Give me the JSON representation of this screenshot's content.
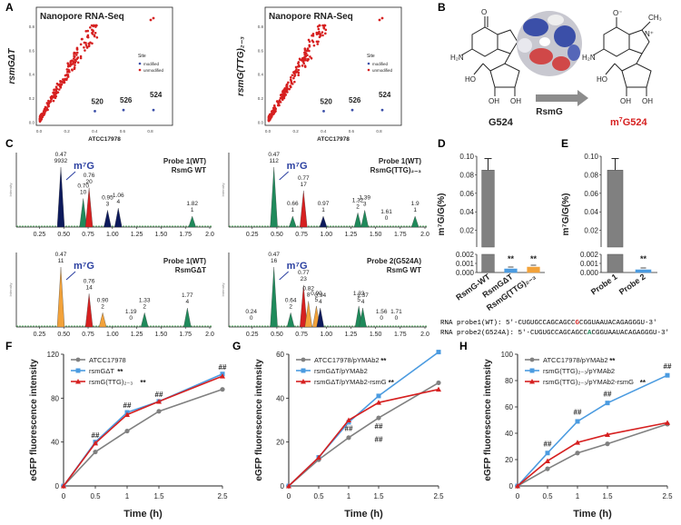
{
  "panel_labels": {
    "A": "A",
    "B": "B",
    "C": "C",
    "D": "D",
    "E": "E",
    "F": "F",
    "G": "G",
    "H": "H"
  },
  "colors": {
    "red": "#d62020",
    "blue": "#3b4fa8",
    "gray": "#808080",
    "lightblue": "#4b9be0",
    "orange": "#f2a23a",
    "green": "#1f8a5b",
    "navy": "#0d1a5c"
  },
  "panel_a": {
    "xlabel": "ATCC17978",
    "legend_title": "Site",
    "legend_modified": "modified",
    "legend_unmodified": "unmodified",
    "x_ticks": [
      "0.0",
      "0.2",
      "0.4",
      "0.6",
      "0.8"
    ],
    "y_ticks": [
      "0.0",
      "0.2",
      "0.4",
      "0.6",
      "0.8"
    ],
    "plots": [
      {
        "title": "Nanopore RNA-Seq",
        "ylabel": "rsmGΔT",
        "labels": [
          "520",
          "526",
          "524"
        ]
      },
      {
        "title": "Nanopore RNA-Seq",
        "ylabel": "rsmG(TTG)₂₋₃",
        "labels": [
          "520",
          "526",
          "524"
        ]
      }
    ]
  },
  "panel_b": {
    "left_label": "G524",
    "right_label": "m⁷G524",
    "enzyme": "RsmG",
    "right_prefix": "m",
    "right_sup": "7",
    "right_rest": "G524"
  },
  "panel_c": {
    "x_ticks": [
      "0.25",
      "0.50",
      "0.75",
      "1.00",
      "1.25",
      "1.50",
      "1.75",
      "2.0"
    ],
    "m7g_label": "m⁷G",
    "traces": [
      {
        "title1": "Probe 1(WT)",
        "title2": "RsmG WT",
        "peaks": [
          {
            "t": "0.47",
            "v": "9932"
          },
          {
            "t": "0.70",
            "v": "10"
          },
          {
            "t": "0.76",
            "v": "20"
          },
          {
            "t": "0.95",
            "v": "3"
          },
          {
            "t": "1.06",
            "v": "4"
          },
          {
            "t": "1.82",
            "v": "1"
          }
        ]
      },
      {
        "title1": "Probe 1(WT)",
        "title2": "RsmG(TTG)₂₋₃",
        "peaks": [
          {
            "t": "0.47",
            "v": "112"
          },
          {
            "t": "0.66",
            "v": "1"
          },
          {
            "t": "0.77",
            "v": "17"
          },
          {
            "t": "0.97",
            "v": "1"
          },
          {
            "t": "1.32",
            "v": "2"
          },
          {
            "t": "1.39",
            "v": "3"
          },
          {
            "t": "1.61",
            "v": "0"
          },
          {
            "t": "1.9",
            "v": "1"
          }
        ]
      },
      {
        "title1": "Probe 1(WT)",
        "title2": "RsmGΔT",
        "peaks": [
          {
            "t": "0.47",
            "v": "11"
          },
          {
            "t": "0.76",
            "v": "14"
          },
          {
            "t": "0.90",
            "v": "2"
          },
          {
            "t": "1.19",
            "v": "0"
          },
          {
            "t": "1.33",
            "v": "2"
          },
          {
            "t": "1.77",
            "v": "4"
          }
        ]
      },
      {
        "title1": "Probe 2(G524A)",
        "title2": "RsmG WT",
        "peaks": [
          {
            "t": "0.24",
            "v": "0"
          },
          {
            "t": "0.47",
            "v": "16"
          },
          {
            "t": "0.64",
            "v": "2"
          },
          {
            "t": "0.77",
            "v": "23"
          },
          {
            "t": "0.82",
            "v": "8"
          },
          {
            "t": "0.90",
            "v": "5"
          },
          {
            "t": "0.94",
            "v": "4"
          },
          {
            "t": "1.33",
            "v": "5"
          },
          {
            "t": "1.37",
            "v": "4"
          },
          {
            "t": "1.56",
            "v": "0"
          },
          {
            "t": "1.71",
            "v": "0"
          }
        ]
      }
    ]
  },
  "panel_d": {
    "ylabel": "m⁷G/G(%)",
    "categories": [
      "RsmG-WT",
      "RsmGΔT",
      "RsmG(TTG)₂₋₃"
    ],
    "values": [
      0.085,
      0.0004,
      0.0006
    ],
    "sig": [
      "",
      "**",
      "**"
    ],
    "upper_ticks": [
      "0.10",
      "0.08",
      "0.06",
      "0.04",
      "0.02"
    ],
    "lower_ticks": [
      "0.002",
      "0.001",
      "0.000"
    ]
  },
  "panel_e": {
    "ylabel": "m⁷G/G(%)",
    "categories": [
      "Probe 1",
      "Probe 2"
    ],
    "values": [
      0.085,
      0.0003
    ],
    "sig": [
      "",
      "**"
    ],
    "upper_ticks": [
      "0.10",
      "0.08",
      "0.06",
      "0.04",
      "0.02"
    ],
    "lower_ticks": [
      "0.002",
      "0.001",
      "0.000"
    ]
  },
  "sequences": {
    "probe1_label": "RNA probe1(WT): ",
    "probe1_pre": "5'-CUGUGCCAGCAGCC",
    "probe1_mid": "G",
    "probe1_post": "CGGUAAUACAGAGGGU-3'",
    "probe2_label": "RNA probe2(G524A): ",
    "probe2_pre": "5'-CUGUGCCAGCAGCC",
    "probe2_mid": "A",
    "probe2_post": "CGGUAAUACAGAGGGU-3'"
  },
  "chart_data": [
    {
      "type": "line",
      "panel": "F",
      "xlabel": "Time (h)",
      "ylabel": "eGFP fluorescence intensity",
      "x": [
        0,
        0.5,
        1,
        1.5,
        2.5
      ],
      "x_ticks": [
        "0",
        "0.5",
        "1",
        "1.5",
        "2.5"
      ],
      "ylim": [
        0,
        120
      ],
      "y_ticks": [
        "0",
        "40",
        "80",
        "120"
      ],
      "series": [
        {
          "name": "ATCC17978",
          "values": [
            0,
            31,
            50,
            68,
            88
          ],
          "sig": ""
        },
        {
          "name": "rsmGΔT",
          "values": [
            0,
            40,
            67,
            77,
            102
          ],
          "sig": "**"
        },
        {
          "name": "rsmG(TTG)₂₋₃",
          "values": [
            0,
            39,
            65,
            77,
            100
          ],
          "sig": "**"
        }
      ],
      "annotations": [
        {
          "x": 0.5,
          "y": 44,
          "text": "##"
        },
        {
          "x": 1,
          "y": 71,
          "text": "##"
        },
        {
          "x": 1.5,
          "y": 81,
          "text": "##"
        },
        {
          "x": 2.5,
          "y": 106,
          "text": "##"
        }
      ]
    },
    {
      "type": "line",
      "panel": "G",
      "xlabel": "Time (h)",
      "ylabel": "eGFP fluorescence intensity",
      "x": [
        0,
        0.5,
        1,
        1.5,
        2.5
      ],
      "x_ticks": [
        "0",
        "0.5",
        "1",
        "1.5",
        "2.5"
      ],
      "ylim": [
        0,
        60
      ],
      "y_ticks": [
        "0",
        "20",
        "40",
        "60"
      ],
      "series": [
        {
          "name": "ATCC17978/pYMAb2",
          "values": [
            0,
            12,
            22,
            31,
            47
          ],
          "sig": "**"
        },
        {
          "name": "rsmGΔT/pYMAb2",
          "values": [
            0,
            13,
            29,
            41,
            61
          ],
          "sig": ""
        },
        {
          "name": "rsmGΔT/pYMAb2-rsmG",
          "values": [
            0,
            13,
            30,
            38,
            44
          ],
          "sig": "**"
        }
      ],
      "annotations": [
        {
          "x": 1,
          "y": 25,
          "text": "##"
        },
        {
          "x": 1.5,
          "y": 26,
          "text": "##"
        },
        {
          "x": 1.5,
          "y": 20,
          "text": "##"
        }
      ]
    },
    {
      "type": "line",
      "panel": "H",
      "xlabel": "Time (h)",
      "ylabel": "eGFP fluorescence intensity",
      "x": [
        0,
        0.5,
        1,
        1.5,
        2.5
      ],
      "x_ticks": [
        "0",
        "0.5",
        "1",
        "1.5",
        "2.5"
      ],
      "ylim": [
        0,
        100
      ],
      "y_ticks": [
        "0",
        "20",
        "40",
        "60",
        "80",
        "100"
      ],
      "series": [
        {
          "name": "ATCC17978/pYMAb2",
          "values": [
            0,
            13,
            25,
            32,
            47
          ],
          "sig": "**"
        },
        {
          "name": "rsmG(TTG)₂₋₃/pYMAb2",
          "values": [
            0,
            25,
            49,
            63,
            84
          ],
          "sig": ""
        },
        {
          "name": "rsmG(TTG)₂₋₃/pYMAb2-rsmG",
          "values": [
            0,
            19,
            33,
            39,
            48
          ],
          "sig": "**"
        }
      ],
      "annotations": [
        {
          "x": 0.5,
          "y": 30,
          "text": "##"
        },
        {
          "x": 1,
          "y": 54,
          "text": "##"
        },
        {
          "x": 1.5,
          "y": 68,
          "text": "##"
        },
        {
          "x": 2.5,
          "y": 89,
          "text": "##"
        }
      ]
    }
  ]
}
